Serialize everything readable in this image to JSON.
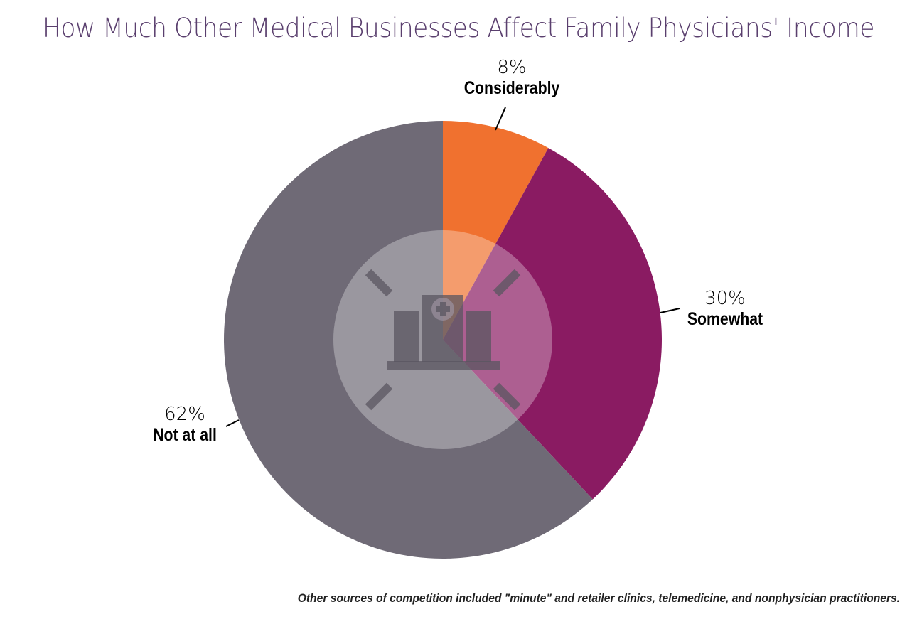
{
  "chart_data": {
    "type": "pie",
    "title": "How Much Other Medical Businesses Affect Family Physicians' Income",
    "slices": [
      {
        "label": "Considerably",
        "value": 8,
        "value_label": "8%",
        "color": "#f0712f"
      },
      {
        "label": "Somewhat",
        "value": 30,
        "value_label": "30%",
        "color": "#8a1b62"
      },
      {
        "label": "Not at all",
        "value": 62,
        "value_label": "62%",
        "color": "#6f6a76"
      }
    ],
    "start_angle": "12 o'clock",
    "direction": "clockwise",
    "center_icon": "hospital-building-with-expand-arrows-icon",
    "footnote": "Other sources of competition included \"minute\" and retailer clinics, telemedicine, and nonphysician practitioners."
  }
}
